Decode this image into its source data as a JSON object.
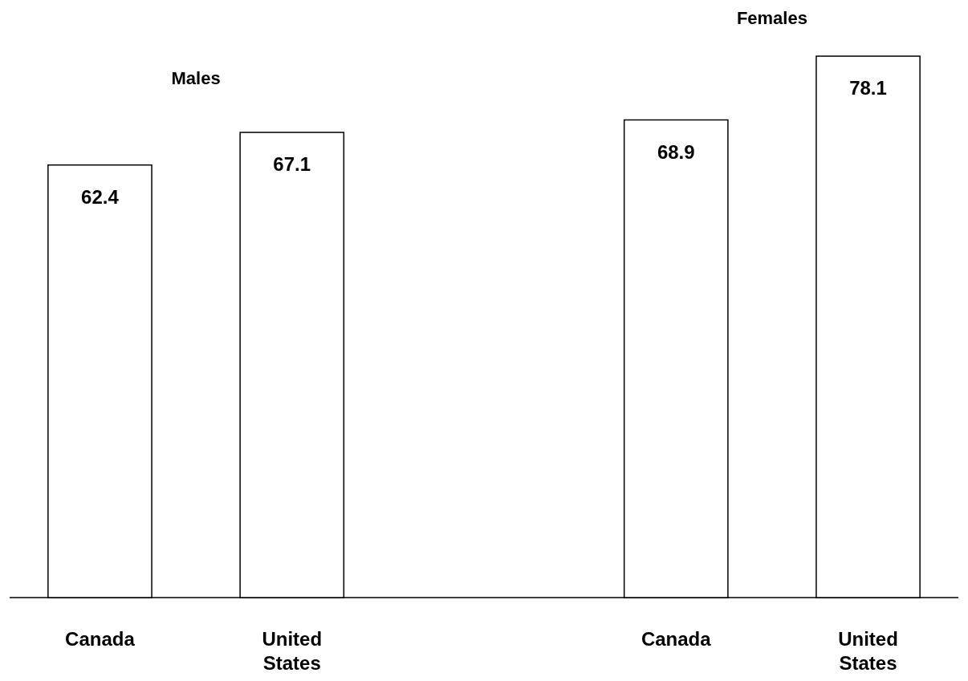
{
  "chart_data": {
    "type": "bar",
    "categories": [
      "Canada",
      "United States",
      null,
      "Canada",
      "United States"
    ],
    "values": [
      62.4,
      67.1,
      null,
      68.9,
      78.1
    ],
    "color": "#ffffff",
    "data_labels": true,
    "annotations": [
      "Males",
      "Females"
    ]
  }
}
